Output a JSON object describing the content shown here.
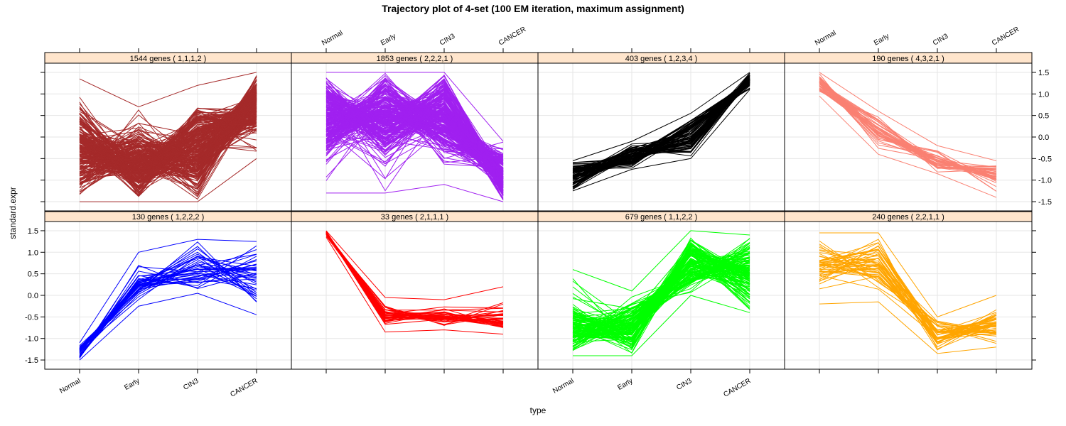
{
  "chart_data": {
    "type": "line",
    "title": "Trajectory plot of 4-set (100 EM iteration, maximum assignment)",
    "xlabel": "type",
    "ylabel": "standard.expr",
    "categories": [
      "Normal",
      "Early",
      "CIN3",
      "CANCER"
    ],
    "ylim": [
      -1.7,
      1.7
    ],
    "yticks": [
      -1.5,
      -1.0,
      -0.5,
      0.0,
      0.5,
      1.0,
      1.5
    ],
    "ytick_labels": [
      "-1.5",
      "-1.0",
      "-0.5",
      "0.0",
      "0.5",
      "1.0",
      "1.5"
    ],
    "grid": true,
    "panels": [
      {
        "strip": "1544 genes ( 1,1,1,2 )",
        "color": "#A52A2A",
        "n_genes": 1544,
        "pattern": "1,1,1,2",
        "envelope": {
          "min": [
            -1.5,
            -1.5,
            -1.5,
            -0.5
          ],
          "max": [
            1.35,
            0.7,
            1.2,
            1.5
          ]
        },
        "core": {
          "min": [
            -1.5,
            -1.5,
            -1.5,
            0.0
          ],
          "max": [
            0.9,
            0.2,
            0.9,
            1.5
          ]
        }
      },
      {
        "strip": "1853 genes ( 2,2,2,1 )",
        "color": "#A020F0",
        "n_genes": 1853,
        "pattern": "2,2,2,1",
        "envelope": {
          "min": [
            -1.3,
            -1.3,
            -1.1,
            -1.5
          ],
          "max": [
            1.5,
            1.5,
            1.5,
            -0.1
          ]
        },
        "core": {
          "min": [
            -0.5,
            -0.5,
            -0.5,
            -1.5
          ],
          "max": [
            1.5,
            1.5,
            1.5,
            -0.3
          ]
        }
      },
      {
        "strip": "403 genes ( 1,2,3,4 )",
        "color": "#000000",
        "n_genes": 403,
        "pattern": "1,2,3,4",
        "envelope": {
          "min": [
            -1.25,
            -0.75,
            -0.5,
            1.1
          ],
          "max": [
            -0.55,
            -0.1,
            0.55,
            1.5
          ]
        },
        "core": {
          "min": [
            -1.25,
            -0.75,
            -0.5,
            1.1
          ],
          "max": [
            -0.55,
            -0.15,
            0.55,
            1.5
          ]
        }
      },
      {
        "strip": "190 genes ( 4,3,2,1 )",
        "color": "#FA8072",
        "n_genes": 190,
        "pattern": "4,3,2,1",
        "envelope": {
          "min": [
            0.95,
            -0.4,
            -0.85,
            -1.4
          ],
          "max": [
            1.5,
            0.6,
            -0.2,
            -0.55
          ]
        },
        "core": {
          "min": [
            1.0,
            -0.3,
            -0.8,
            -1.2
          ],
          "max": [
            1.5,
            0.5,
            -0.3,
            -0.6
          ]
        }
      },
      {
        "strip": "130 genes ( 1,2,2,2 )",
        "color": "#0000FF",
        "n_genes": 130,
        "pattern": "1,2,2,2",
        "envelope": {
          "min": [
            -1.5,
            -0.25,
            0.05,
            -0.45
          ],
          "max": [
            -1.1,
            1.0,
            1.3,
            1.25
          ]
        },
        "core": {
          "min": [
            -1.5,
            -0.25,
            0.1,
            -0.3
          ],
          "max": [
            -1.15,
            0.7,
            1.25,
            1.2
          ]
        }
      },
      {
        "strip": "33 genes ( 2,1,1,1 )",
        "color": "#FF0000",
        "n_genes": 33,
        "pattern": "2,1,1,1",
        "envelope": {
          "min": [
            1.35,
            -0.85,
            -0.8,
            -0.9
          ],
          "max": [
            1.5,
            -0.05,
            -0.1,
            0.2
          ]
        },
        "core": {
          "min": [
            1.4,
            -0.7,
            -0.7,
            -0.85
          ],
          "max": [
            1.5,
            -0.2,
            -0.3,
            -0.3
          ]
        }
      },
      {
        "strip": "679 genes ( 1,1,2,2 )",
        "color": "#00FF00",
        "n_genes": 679,
        "pattern": "1,1,2,2",
        "envelope": {
          "min": [
            -1.4,
            -1.4,
            0.0,
            -0.4
          ],
          "max": [
            0.6,
            0.1,
            1.5,
            1.4
          ]
        },
        "core": {
          "min": [
            -1.4,
            -1.4,
            0.05,
            -0.4
          ],
          "max": [
            -0.2,
            -0.1,
            1.5,
            1.4
          ]
        }
      },
      {
        "strip": "240 genes ( 2,2,1,1 )",
        "color": "#FFA500",
        "n_genes": 240,
        "pattern": "2,2,1,1",
        "envelope": {
          "min": [
            -0.2,
            -0.15,
            -1.35,
            -1.2
          ],
          "max": [
            1.45,
            1.45,
            -0.5,
            0.0
          ]
        },
        "core": {
          "min": [
            0.1,
            0.1,
            -1.35,
            -1.2
          ],
          "max": [
            1.45,
            1.45,
            -0.5,
            -0.3
          ]
        }
      }
    ]
  }
}
